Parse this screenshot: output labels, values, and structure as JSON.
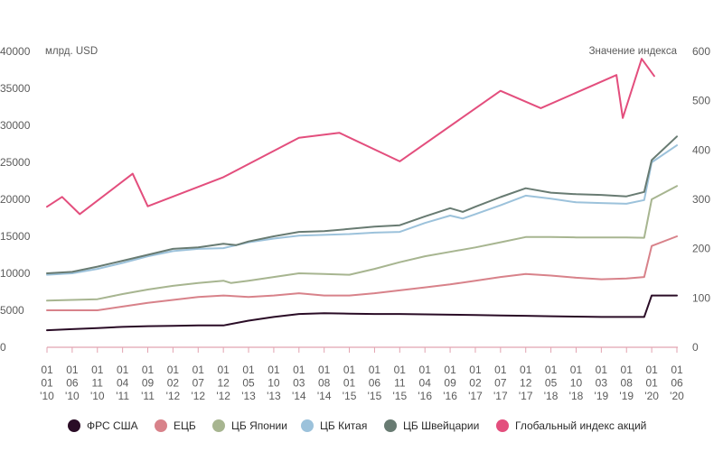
{
  "chart_data": {
    "type": "line",
    "left_unit": "млрд. USD",
    "right_unit": "Значение индекса",
    "ylim_left": [
      0,
      40000
    ],
    "ylim_right": [
      0,
      600
    ],
    "y_ticks_left": [
      "0",
      "5000",
      "10000",
      "15000",
      "20000",
      "25000",
      "30000",
      "35000",
      "40000"
    ],
    "y_ticks_right": [
      "0",
      "100",
      "200",
      "300",
      "400",
      "500",
      "600"
    ],
    "x_ticks": [
      [
        "01",
        "01",
        "'10"
      ],
      [
        "01",
        "06",
        "'10"
      ],
      [
        "01",
        "11",
        "'10"
      ],
      [
        "01",
        "04",
        "'11"
      ],
      [
        "01",
        "09",
        "'11"
      ],
      [
        "01",
        "02",
        "'12"
      ],
      [
        "01",
        "07",
        "'12"
      ],
      [
        "01",
        "12",
        "'12"
      ],
      [
        "01",
        "05",
        "'13"
      ],
      [
        "01",
        "10",
        "'13"
      ],
      [
        "01",
        "03",
        "'14"
      ],
      [
        "01",
        "08",
        "'14"
      ],
      [
        "01",
        "01",
        "'15"
      ],
      [
        "01",
        "06",
        "'15"
      ],
      [
        "01",
        "11",
        "'15"
      ],
      [
        "01",
        "04",
        "'16"
      ],
      [
        "01",
        "09",
        "'16"
      ],
      [
        "01",
        "02",
        "'17"
      ],
      [
        "01",
        "07",
        "'17"
      ],
      [
        "01",
        "12",
        "'17"
      ],
      [
        "01",
        "05",
        "'18"
      ],
      [
        "01",
        "10",
        "'18"
      ],
      [
        "01",
        "03",
        "'19"
      ],
      [
        "01",
        "08",
        "'19"
      ],
      [
        "01",
        "01",
        "'20"
      ],
      [
        "01",
        "06",
        "'20"
      ]
    ],
    "grid": false,
    "legend_position": "bottom",
    "series": [
      {
        "name": "ФРС США",
        "axis": "left",
        "color": "#2a0c26",
        "points": [
          [
            0,
            2300
          ],
          [
            1,
            2450
          ],
          [
            2,
            2600
          ],
          [
            3,
            2750
          ],
          [
            4,
            2850
          ],
          [
            5,
            2900
          ],
          [
            6,
            2950
          ],
          [
            7,
            2950
          ],
          [
            8,
            3600
          ],
          [
            9,
            4100
          ],
          [
            10,
            4500
          ],
          [
            11,
            4600
          ],
          [
            12,
            4550
          ],
          [
            13,
            4500
          ],
          [
            14,
            4500
          ],
          [
            15,
            4450
          ],
          [
            16,
            4400
          ],
          [
            17,
            4350
          ],
          [
            18,
            4300
          ],
          [
            19,
            4250
          ],
          [
            20,
            4200
          ],
          [
            21,
            4150
          ],
          [
            22,
            4100
          ],
          [
            23,
            4100
          ],
          [
            23.7,
            4100
          ],
          [
            24,
            7000
          ],
          [
            25,
            7000
          ]
        ]
      },
      {
        "name": "ЕЦБ",
        "axis": "left",
        "color": "#d8828a",
        "points": [
          [
            0,
            5000
          ],
          [
            1,
            5000
          ],
          [
            2,
            5000
          ],
          [
            3,
            5500
          ],
          [
            4,
            6000
          ],
          [
            5,
            6400
          ],
          [
            6,
            6800
          ],
          [
            7,
            7000
          ],
          [
            8,
            6800
          ],
          [
            9,
            7000
          ],
          [
            10,
            7300
          ],
          [
            11,
            7000
          ],
          [
            12,
            7000
          ],
          [
            13,
            7300
          ],
          [
            14,
            7700
          ],
          [
            15,
            8100
          ],
          [
            16,
            8500
          ],
          [
            17,
            9000
          ],
          [
            18,
            9500
          ],
          [
            19,
            9900
          ],
          [
            20,
            9700
          ],
          [
            21,
            9400
          ],
          [
            22,
            9200
          ],
          [
            23,
            9300
          ],
          [
            23.7,
            9500
          ],
          [
            24,
            13700
          ],
          [
            25,
            15000
          ]
        ]
      },
      {
        "name": "ЦБ Японии",
        "axis": "left",
        "color": "#a7b590",
        "points": [
          [
            0,
            6300
          ],
          [
            1,
            6400
          ],
          [
            2,
            6500
          ],
          [
            3,
            7200
          ],
          [
            4,
            7800
          ],
          [
            5,
            8300
          ],
          [
            6,
            8700
          ],
          [
            7,
            9000
          ],
          [
            7.3,
            8700
          ],
          [
            8,
            9000
          ],
          [
            9,
            9500
          ],
          [
            10,
            10000
          ],
          [
            11,
            9900
          ],
          [
            12,
            9800
          ],
          [
            13,
            10600
          ],
          [
            14,
            11500
          ],
          [
            15,
            12300
          ],
          [
            16,
            12900
          ],
          [
            17,
            13500
          ],
          [
            18,
            14200
          ],
          [
            19,
            14900
          ],
          [
            20,
            14900
          ],
          [
            21,
            14850
          ],
          [
            22,
            14850
          ],
          [
            23,
            14850
          ],
          [
            23.7,
            14800
          ],
          [
            24,
            20000
          ],
          [
            25,
            21800
          ]
        ]
      },
      {
        "name": "ЦБ Китая",
        "axis": "left",
        "color": "#9cc2db",
        "points": [
          [
            0,
            9800
          ],
          [
            1,
            10000
          ],
          [
            2,
            10600
          ],
          [
            3,
            11400
          ],
          [
            4,
            12300
          ],
          [
            5,
            13000
          ],
          [
            6,
            13300
          ],
          [
            7,
            13400
          ],
          [
            8,
            14200
          ],
          [
            9,
            14700
          ],
          [
            10,
            15100
          ],
          [
            11,
            15200
          ],
          [
            12,
            15300
          ],
          [
            13,
            15500
          ],
          [
            14,
            15600
          ],
          [
            15,
            16800
          ],
          [
            16,
            17800
          ],
          [
            16.5,
            17400
          ],
          [
            17,
            18000
          ],
          [
            18,
            19200
          ],
          [
            19,
            20500
          ],
          [
            20,
            20100
          ],
          [
            21,
            19600
          ],
          [
            22,
            19500
          ],
          [
            23,
            19400
          ],
          [
            23.7,
            19900
          ],
          [
            24,
            25000
          ],
          [
            25,
            27300
          ]
        ]
      },
      {
        "name": "ЦБ Швейцарии",
        "axis": "left",
        "color": "#687b72",
        "points": [
          [
            0,
            10000
          ],
          [
            1,
            10200
          ],
          [
            2,
            10900
          ],
          [
            3,
            11700
          ],
          [
            4,
            12500
          ],
          [
            5,
            13300
          ],
          [
            6,
            13500
          ],
          [
            7,
            14000
          ],
          [
            7.5,
            13800
          ],
          [
            8,
            14300
          ],
          [
            9,
            15000
          ],
          [
            10,
            15600
          ],
          [
            11,
            15700
          ],
          [
            12,
            16000
          ],
          [
            13,
            16300
          ],
          [
            14,
            16500
          ],
          [
            15,
            17700
          ],
          [
            16,
            18800
          ],
          [
            16.5,
            18300
          ],
          [
            17,
            19000
          ],
          [
            18,
            20300
          ],
          [
            19,
            21500
          ],
          [
            20,
            20900
          ],
          [
            21,
            20700
          ],
          [
            22,
            20600
          ],
          [
            23,
            20400
          ],
          [
            23.7,
            21000
          ],
          [
            24,
            25300
          ],
          [
            25,
            28500
          ]
        ]
      },
      {
        "name": "Глобальный индекс акций",
        "axis": "right",
        "color": "#e34e7d",
        "points": [
          [
            0,
            285
          ],
          [
            0.6,
            305
          ],
          [
            1.3,
            270
          ],
          [
            3.4,
            352
          ],
          [
            4,
            286
          ],
          [
            7,
            345
          ],
          [
            10,
            425
          ],
          [
            11.6,
            435
          ],
          [
            14,
            377
          ],
          [
            18,
            520
          ],
          [
            19.6,
            485
          ],
          [
            22.6,
            552
          ],
          [
            22.85,
            465
          ],
          [
            23.6,
            585
          ],
          [
            24.1,
            550
          ]
        ]
      }
    ]
  }
}
